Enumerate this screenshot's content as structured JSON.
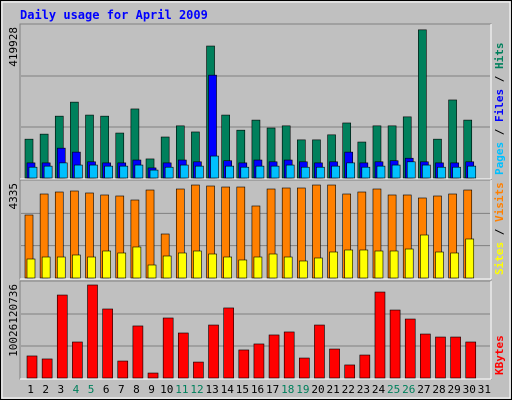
{
  "chart_data": {
    "type": "bar",
    "title": "Daily usage for April 2009",
    "categories": [
      "1",
      "2",
      "3",
      "4",
      "5",
      "6",
      "7",
      "8",
      "9",
      "10",
      "11",
      "12",
      "13",
      "14",
      "15",
      "16",
      "17",
      "18",
      "19",
      "20",
      "21",
      "22",
      "23",
      "24",
      "25",
      "26",
      "27",
      "28",
      "29",
      "30",
      "31"
    ],
    "category_colors": [
      "#000000",
      "#000000",
      "#000000",
      "#00805c",
      "#00805c",
      "#000000",
      "#000000",
      "#000000",
      "#000000",
      "#000000",
      "#00805c",
      "#00805c",
      "#000000",
      "#000000",
      "#000000",
      "#000000",
      "#000000",
      "#00805c",
      "#00805c",
      "#000000",
      "#000000",
      "#000000",
      "#000000",
      "#000000",
      "#00805c",
      "#00805c",
      "#000000",
      "#000000",
      "#000000",
      "#000000",
      "#000000"
    ],
    "legend_separator": " / ",
    "panels": [
      {
        "ylim": [
          0,
          419928
        ],
        "yticks": [
          419928
        ],
        "series": [
          {
            "name": "Hits",
            "color": "#00805c",
            "values": [
              108000,
              122000,
              172000,
              211000,
              175000,
              172000,
              125000,
              192000,
              53000,
              114000,
              145000,
              128000,
              367000,
              175000,
              133000,
              161000,
              139000,
              145000,
              106000,
              106000,
              120000,
              153000,
              100000,
              145000,
              145000,
              170000,
              412000,
              108000,
              217000,
              161000,
              null
            ]
          },
          {
            "name": "Files",
            "color": "#0000ff",
            "values": [
              42000,
              42000,
              83000,
              72000,
              45000,
              42000,
              42000,
              50000,
              28000,
              42000,
              50000,
              45000,
              286000,
              48000,
              42000,
              50000,
              45000,
              50000,
              45000,
              42000,
              45000,
              72000,
              42000,
              45000,
              48000,
              55000,
              45000,
              42000,
              42000,
              45000,
              null
            ]
          },
          {
            "name": "Pages",
            "color": "#00c0ff",
            "values": [
              30000,
              33000,
              42000,
              36000,
              36000,
              33000,
              33000,
              36000,
              22000,
              30000,
              36000,
              33000,
              61000,
              33000,
              30000,
              33000,
              33000,
              36000,
              30000,
              30000,
              33000,
              42000,
              30000,
              33000,
              36000,
              45000,
              36000,
              30000,
              30000,
              33000,
              null
            ]
          }
        ]
      },
      {
        "ylim": [
          0,
          4335
        ],
        "yticks": [
          4335
        ],
        "series": [
          {
            "name": "Visits",
            "color": "#ff8000",
            "values": [
              2875,
              3833,
              3924,
              3970,
              3879,
              3788,
              3742,
              3559,
              4015,
              2008,
              4061,
              4243,
              4198,
              4152,
              4152,
              3286,
              4061,
              4107,
              4107,
              4243,
              4243,
              3833,
              3924,
              4061,
              3788,
              3788,
              3651,
              3742,
              3833,
              4015,
              null
            ]
          },
          {
            "name": "Sites",
            "color": "#ffff00",
            "values": [
              867,
              958,
              958,
              1050,
              958,
              1232,
              1141,
              1415,
              593,
              1004,
              1141,
              1232,
              1095,
              958,
              822,
              958,
              1095,
              958,
              776,
              913,
              1186,
              1278,
              1278,
              1232,
              1232,
              1323,
              1962,
              1186,
              1141,
              1780,
              null
            ]
          }
        ]
      },
      {
        "ylim": [
          0,
          10026120736
        ],
        "yticks": [
          10026120736
        ],
        "series": [
          {
            "name": "KBytes",
            "color": "#ff0000",
            "values": [
              2350000000,
              2030000000,
              8850000000,
              3840000000,
              9920000000,
              7360000000,
              1810000000,
              5550000000,
              530000000,
              6400000000,
              4800000000,
              1700000000,
              5650000000,
              7470000000,
              2990000000,
              3630000000,
              4590000000,
              4910000000,
              2130000000,
              5650000000,
              3090000000,
              1390000000,
              2450000000,
              9170000000,
              7250000000,
              6290000000,
              4690000000,
              4370000000,
              4370000000,
              3840000000,
              null
            ]
          }
        ]
      }
    ]
  }
}
